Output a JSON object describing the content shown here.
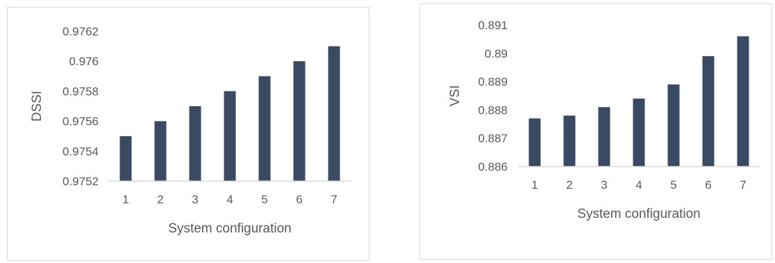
{
  "colors": {
    "bar": "#3b4a63",
    "gridline": "#d9d9d9",
    "text": "#595959"
  },
  "chart_data": [
    {
      "type": "bar",
      "categories": [
        "1",
        "2",
        "3",
        "4",
        "5",
        "6",
        "7"
      ],
      "values": [
        0.9755,
        0.9756,
        0.9757,
        0.9758,
        0.9759,
        0.976,
        0.9761
      ],
      "xlabel": "System configuration",
      "ylabel": "DSSI",
      "ylim": [
        0.9752,
        0.9762
      ],
      "yticks": [
        "0.9752",
        "0.9754",
        "0.9756",
        "0.9758",
        "0.976",
        "0.9762"
      ],
      "grid": false
    },
    {
      "type": "bar",
      "categories": [
        "1",
        "2",
        "3",
        "4",
        "5",
        "6",
        "7"
      ],
      "values": [
        0.8877,
        0.8878,
        0.8881,
        0.8884,
        0.8889,
        0.8899,
        0.8906
      ],
      "xlabel": "System configuration",
      "ylabel": "VSI",
      "ylim": [
        0.886,
        0.891
      ],
      "yticks": [
        "0.886",
        "0.887",
        "0.888",
        "0.889",
        "0.89",
        "0.891"
      ],
      "grid": false
    }
  ]
}
